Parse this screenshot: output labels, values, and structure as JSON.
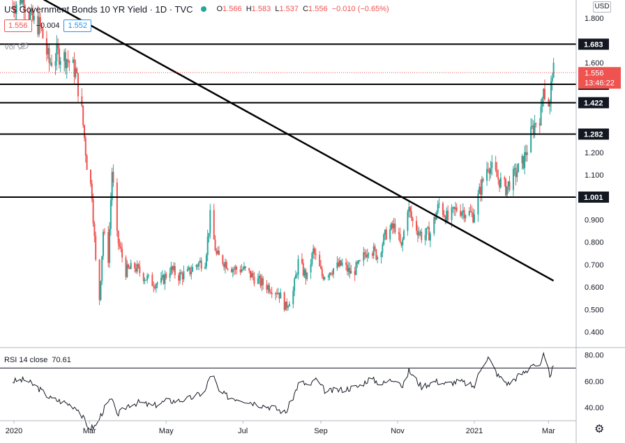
{
  "header": {
    "title": "US Government Bonds 10 YR Yield · 1D · TVC",
    "ohlc": [
      {
        "k": "O",
        "v": "1.566"
      },
      {
        "k": "H",
        "v": "1.583"
      },
      {
        "k": "L",
        "v": "1.537"
      },
      {
        "k": "C",
        "v": "1.556"
      },
      {
        "k": "",
        "v": "−0.010 (−0.65%)"
      }
    ],
    "bid": "1.556",
    "spread": "−0.004",
    "ask": "1.552",
    "vol_label": "Vol"
  },
  "currency": "USD",
  "rsi_indicator": {
    "label": "RSI 14 close",
    "value": "70.61"
  },
  "price_tag": {
    "value": "1.556",
    "countdown": "13:46:22"
  },
  "colors": {
    "up": "#26a69a",
    "down": "#ef5350",
    "axis": "#b2b5be",
    "text": "#131722",
    "rsi_line": "#131722",
    "tag_red": "#ef5350",
    "level_bg": "#131722"
  },
  "chart_data": [
    {
      "type": "candlestick",
      "title": "US Government Bonds 10 YR Yield",
      "ylim": [
        0.33,
        1.88
      ],
      "price_ticks": [
        "1.800",
        "1.600",
        "1.200",
        "1.100",
        "0.900",
        "0.800",
        "0.700",
        "0.600",
        "0.500",
        "0.400"
      ],
      "x_ticks": [
        "2020",
        "Mar",
        "May",
        "Jul",
        "Sep",
        "Nov",
        "2021",
        "Mar"
      ],
      "levels": [
        {
          "label": "1.683",
          "value": 1.683
        },
        {
          "label": "1.504",
          "value": 1.504
        },
        {
          "label": "1.422",
          "value": 1.422
        },
        {
          "label": "1.282",
          "value": 1.282
        },
        {
          "label": "1.001",
          "value": 1.001
        }
      ],
      "trendline": {
        "start": {
          "date": "2020-01-06",
          "value": 1.94
        },
        "end": {
          "date": "2021-03-05",
          "value": 0.628
        }
      },
      "close_path": [
        [
          "2019-12-31",
          1.85
        ],
        [
          "2020-01-08",
          1.9
        ],
        [
          "2020-01-15",
          1.79
        ],
        [
          "2020-01-22",
          1.76
        ],
        [
          "2020-01-29",
          1.6
        ],
        [
          "2020-02-05",
          1.64
        ],
        [
          "2020-02-12",
          1.62
        ],
        [
          "2020-02-19",
          1.56
        ],
        [
          "2020-02-24",
          1.38
        ],
        [
          "2020-02-28",
          1.15
        ],
        [
          "2020-03-03",
          1.02
        ],
        [
          "2020-03-06",
          0.71
        ],
        [
          "2020-03-09",
          0.55
        ],
        [
          "2020-03-12",
          0.85
        ],
        [
          "2020-03-16",
          0.73
        ],
        [
          "2020-03-19",
          1.12
        ],
        [
          "2020-03-23",
          0.82
        ],
        [
          "2020-03-30",
          0.67
        ],
        [
          "2020-04-06",
          0.69
        ],
        [
          "2020-04-13",
          0.65
        ],
        [
          "2020-04-20",
          0.62
        ],
        [
          "2020-04-27",
          0.62
        ],
        [
          "2020-05-04",
          0.68
        ],
        [
          "2020-05-11",
          0.65
        ],
        [
          "2020-05-18",
          0.66
        ],
        [
          "2020-05-25",
          0.7
        ],
        [
          "2020-06-01",
          0.72
        ],
        [
          "2020-06-05",
          0.91
        ],
        [
          "2020-06-10",
          0.74
        ],
        [
          "2020-06-17",
          0.71
        ],
        [
          "2020-06-24",
          0.68
        ],
        [
          "2020-07-01",
          0.68
        ],
        [
          "2020-07-08",
          0.65
        ],
        [
          "2020-07-15",
          0.62
        ],
        [
          "2020-07-22",
          0.6
        ],
        [
          "2020-07-29",
          0.58
        ],
        [
          "2020-08-04",
          0.51
        ],
        [
          "2020-08-10",
          0.58
        ],
        [
          "2020-08-14",
          0.71
        ],
        [
          "2020-08-21",
          0.64
        ],
        [
          "2020-08-26",
          0.76
        ],
        [
          "2020-09-02",
          0.65
        ],
        [
          "2020-09-10",
          0.68
        ],
        [
          "2020-09-18",
          0.7
        ],
        [
          "2020-09-25",
          0.66
        ],
        [
          "2020-10-02",
          0.7
        ],
        [
          "2020-10-09",
          0.78
        ],
        [
          "2020-10-16",
          0.74
        ],
        [
          "2020-10-23",
          0.84
        ],
        [
          "2020-10-30",
          0.87
        ],
        [
          "2020-11-04",
          0.77
        ],
        [
          "2020-11-09",
          0.96
        ],
        [
          "2020-11-13",
          0.89
        ],
        [
          "2020-11-20",
          0.83
        ],
        [
          "2020-11-27",
          0.84
        ],
        [
          "2020-12-04",
          0.97
        ],
        [
          "2020-12-11",
          0.9
        ],
        [
          "2020-12-18",
          0.95
        ],
        [
          "2020-12-24",
          0.94
        ],
        [
          "2020-12-31",
          0.92
        ],
        [
          "2021-01-06",
          1.04
        ],
        [
          "2021-01-12",
          1.15
        ],
        [
          "2021-01-19",
          1.09
        ],
        [
          "2021-01-26",
          1.04
        ],
        [
          "2021-02-02",
          1.1
        ],
        [
          "2021-02-09",
          1.16
        ],
        [
          "2021-02-16",
          1.3
        ],
        [
          "2021-02-19",
          1.34
        ],
        [
          "2021-02-23",
          1.37
        ],
        [
          "2021-02-25",
          1.52
        ],
        [
          "2021-02-26",
          1.46
        ],
        [
          "2021-03-02",
          1.41
        ],
        [
          "2021-03-04",
          1.57
        ],
        [
          "2021-03-05",
          1.556
        ]
      ]
    },
    {
      "type": "line",
      "title": "RSI 14 close",
      "ylim": [
        30,
        85
      ],
      "y_ticks": [
        "80.00",
        "60.00",
        "40.00"
      ],
      "bands": [
        70,
        30
      ],
      "series": [
        {
          "values": [
            [
              "2019-12-31",
              60
            ],
            [
              "2020-01-10",
              61
            ],
            [
              "2020-01-20",
              55
            ],
            [
              "2020-01-30",
              47
            ],
            [
              "2020-02-10",
              44
            ],
            [
              "2020-02-20",
              40
            ],
            [
              "2020-03-01",
              24
            ],
            [
              "2020-03-06",
              26
            ],
            [
              "2020-03-12",
              38
            ],
            [
              "2020-03-18",
              46
            ],
            [
              "2020-03-24",
              35
            ],
            [
              "2020-04-01",
              42
            ],
            [
              "2020-04-10",
              44
            ],
            [
              "2020-04-20",
              41
            ],
            [
              "2020-05-01",
              45
            ],
            [
              "2020-05-10",
              45
            ],
            [
              "2020-05-20",
              47
            ],
            [
              "2020-06-01",
              52
            ],
            [
              "2020-06-06",
              68
            ],
            [
              "2020-06-12",
              52
            ],
            [
              "2020-06-20",
              48
            ],
            [
              "2020-07-01",
              46
            ],
            [
              "2020-07-15",
              42
            ],
            [
              "2020-07-25",
              40
            ],
            [
              "2020-08-04",
              36
            ],
            [
              "2020-08-10",
              48
            ],
            [
              "2020-08-15",
              60
            ],
            [
              "2020-08-24",
              56
            ],
            [
              "2020-08-27",
              62
            ],
            [
              "2020-09-05",
              52
            ],
            [
              "2020-09-20",
              54
            ],
            [
              "2020-10-01",
              56
            ],
            [
              "2020-10-10",
              62
            ],
            [
              "2020-10-20",
              58
            ],
            [
              "2020-11-01",
              63
            ],
            [
              "2020-11-05",
              55
            ],
            [
              "2020-11-10",
              68
            ],
            [
              "2020-11-20",
              56
            ],
            [
              "2020-12-01",
              60
            ],
            [
              "2020-12-10",
              58
            ],
            [
              "2020-12-20",
              60
            ],
            [
              "2021-01-01",
              56
            ],
            [
              "2021-01-07",
              72
            ],
            [
              "2021-01-12",
              78
            ],
            [
              "2021-01-20",
              64
            ],
            [
              "2021-01-28",
              58
            ],
            [
              "2021-02-05",
              64
            ],
            [
              "2021-02-12",
              68
            ],
            [
              "2021-02-16",
              74
            ],
            [
              "2021-02-22",
              70
            ],
            [
              "2021-02-25",
              79
            ],
            [
              "2021-03-02",
              65
            ],
            [
              "2021-03-05",
              70.61
            ]
          ]
        }
      ]
    }
  ]
}
